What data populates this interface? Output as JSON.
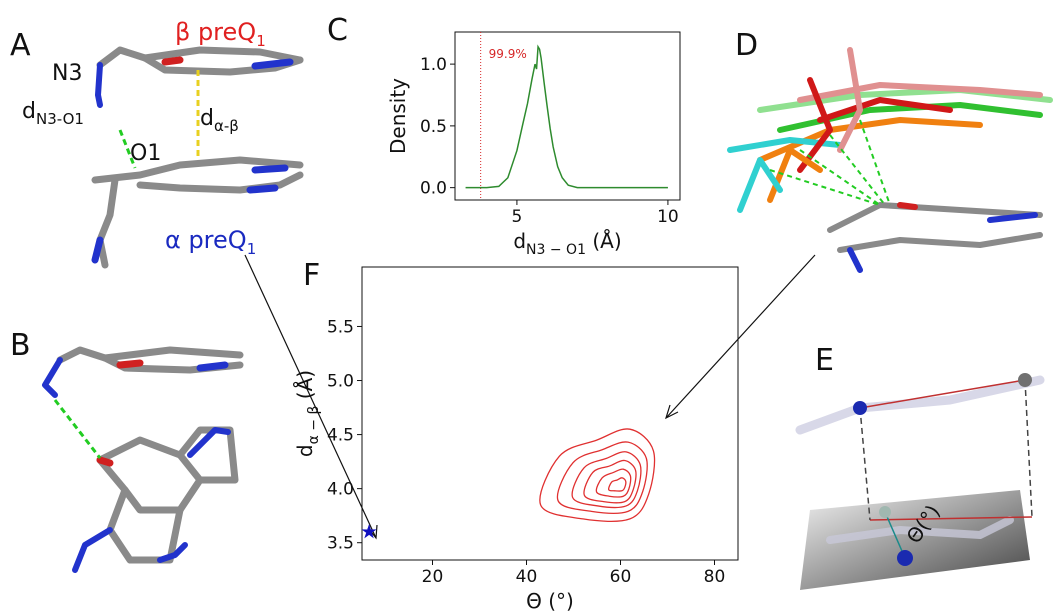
{
  "panels": {
    "A": {
      "letter": "A",
      "beta": {
        "main": "β preQ",
        "sub": "1"
      },
      "n3": "N3",
      "d_n3o1": {
        "main": "d",
        "sub": "N3-O1"
      },
      "d_ab": {
        "main": "d",
        "sub": "α-β"
      },
      "o1": "O1",
      "alpha": {
        "main": "α preQ",
        "sub": "1"
      }
    },
    "B": {
      "letter": "B"
    },
    "C": {
      "letter": "C"
    },
    "D": {
      "letter": "D"
    },
    "E": {
      "letter": "E",
      "theta": "Θ(°)"
    },
    "F": {
      "letter": "F"
    }
  },
  "chart_data": [
    {
      "type": "line",
      "x": [
        3.3,
        4.0,
        4.4,
        4.7,
        5.0,
        5.2,
        5.35,
        5.5,
        5.6,
        5.65,
        5.7,
        5.75,
        5.8,
        5.9,
        6.0,
        6.1,
        6.2,
        6.35,
        6.5,
        6.7,
        7.0,
        8.0,
        10.0
      ],
      "series": [
        {
          "color": "#2e8b2e",
          "values": [
            0,
            0,
            0.01,
            0.08,
            0.3,
            0.52,
            0.68,
            0.88,
            1.0,
            0.96,
            1.14,
            1.12,
            1.05,
            0.85,
            0.66,
            0.48,
            0.33,
            0.17,
            0.08,
            0.02,
            0,
            0,
            0
          ]
        }
      ],
      "xlim": [
        2.95,
        10.4
      ],
      "ylim": [
        -0.1,
        1.26
      ],
      "xticks": [
        5,
        10
      ],
      "yticks": [
        {
          "value": 0,
          "label": "0.0"
        },
        0.5,
        {
          "value": 1,
          "label": "1.0"
        }
      ],
      "xlabel": {
        "main": "d",
        "sub": "N3 − O1",
        "rest": " (Å)"
      },
      "ylabel": "Density",
      "threshold": {
        "x": 3.8,
        "label": "99.9%",
        "color": "#d62728"
      }
    },
    {
      "type": "contour",
      "color": "#e03030",
      "contours": [
        {
          "x": [
            43,
            47,
            55,
            62,
            67,
            66,
            62,
            52
          ],
          "y": [
            3.85,
            4.3,
            4.45,
            4.55,
            4.35,
            3.95,
            3.72,
            3.72
          ]
        },
        {
          "x": [
            46.7,
            49.9,
            56.1,
            61.6,
            65.5,
            64.7,
            61.6,
            53.8
          ],
          "y": [
            3.89,
            4.24,
            4.36,
            4.43,
            4.28,
            3.97,
            3.79,
            3.79
          ]
        },
        {
          "x": [
            49.8,
            52.2,
            57,
            61.2,
            64.2,
            63.6,
            61.2,
            55.2
          ],
          "y": [
            3.92,
            4.19,
            4.28,
            4.34,
            4.22,
            3.98,
            3.84,
            3.84
          ]
        },
        {
          "x": [
            52.3,
            54.1,
            57.7,
            60.9,
            63.2,
            62.7,
            60.9,
            56.4
          ],
          "y": [
            3.94,
            4.15,
            4.21,
            4.26,
            4.17,
            3.99,
            3.88,
            3.88
          ]
        },
        {
          "x": [
            54.9,
            56.1,
            58.5,
            60.6,
            62.1,
            61.8,
            60.6,
            57.6
          ],
          "y": [
            3.97,
            4.1,
            4.15,
            4.18,
            4.12,
            4.0,
            3.93,
            3.93
          ]
        },
        {
          "x": [
            57.5,
            58.1,
            59.3,
            60.3,
            61.1,
            60.9,
            60.3,
            58.8
          ],
          "y": [
            3.99,
            4.06,
            4.08,
            4.1,
            4.07,
            4.01,
            3.98,
            3.98
          ]
        }
      ],
      "markers": {
        "x": [
          6.5
        ],
        "y": [
          3.6
        ],
        "color": "#1010c0"
      },
      "xlim": [
        5,
        85
      ],
      "ylim": [
        3.34,
        6.05
      ],
      "xticks": [
        20,
        40,
        60,
        80
      ],
      "yticks": [
        3.5,
        {
          "value": 4,
          "label": "4.0"
        },
        4.5,
        {
          "value": 5,
          "label": "5.0"
        },
        5.5
      ],
      "xlabel": "Θ (°)",
      "ylabel": {
        "main": "d",
        "sub": "α − β",
        "rest": " (Å)"
      }
    }
  ]
}
